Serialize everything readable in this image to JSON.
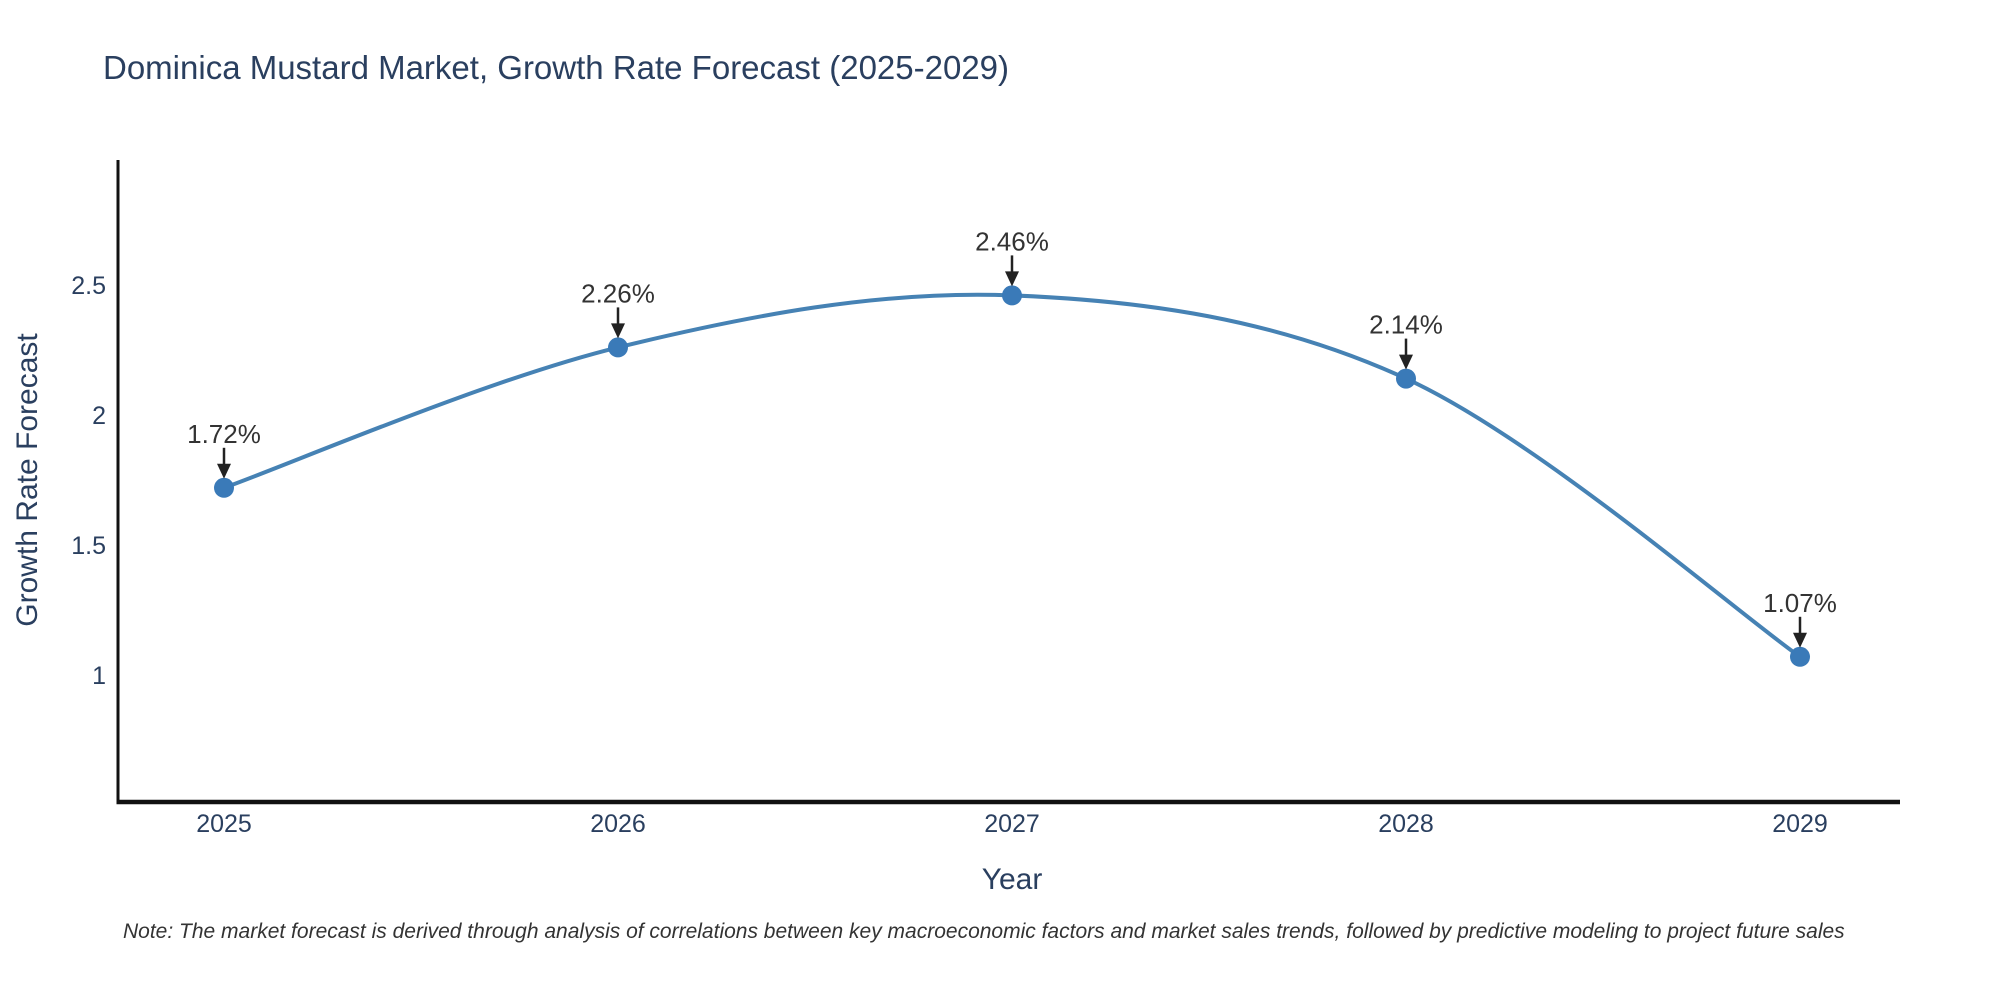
{
  "chart_data": {
    "type": "line",
    "title": "Dominica Mustard Market, Growth Rate Forecast (2025-2029)",
    "xlabel": "Year",
    "ylabel": "Growth Rate Forecast",
    "x": [
      2025,
      2026,
      2027,
      2028,
      2029
    ],
    "series": [
      {
        "name": "Growth Rate Forecast",
        "values": [
          1.72,
          2.26,
          2.46,
          2.14,
          1.07
        ]
      }
    ],
    "point_labels": [
      "1.72%",
      "2.26%",
      "2.46%",
      "2.14%",
      "1.07%"
    ],
    "yticks": [
      "1",
      "1.5",
      "2",
      "2.5"
    ],
    "ytick_values": [
      1,
      1.5,
      2,
      2.5
    ],
    "ylim": [
      0.51,
      2.98
    ],
    "grid": false,
    "legend_position": "none",
    "line_shape": "spline",
    "note": "Note: The market forecast is derived through analysis of correlations between key macroeconomic factors and market sales trends, followed by predictive modeling to project future sales",
    "colors": {
      "line": "#4682b4",
      "marker": "#3a7ab8",
      "axis": "#111111",
      "text": "#2a3f5f",
      "annotation": "#333333",
      "arrow": "#222222",
      "background": "#ffffff"
    }
  }
}
